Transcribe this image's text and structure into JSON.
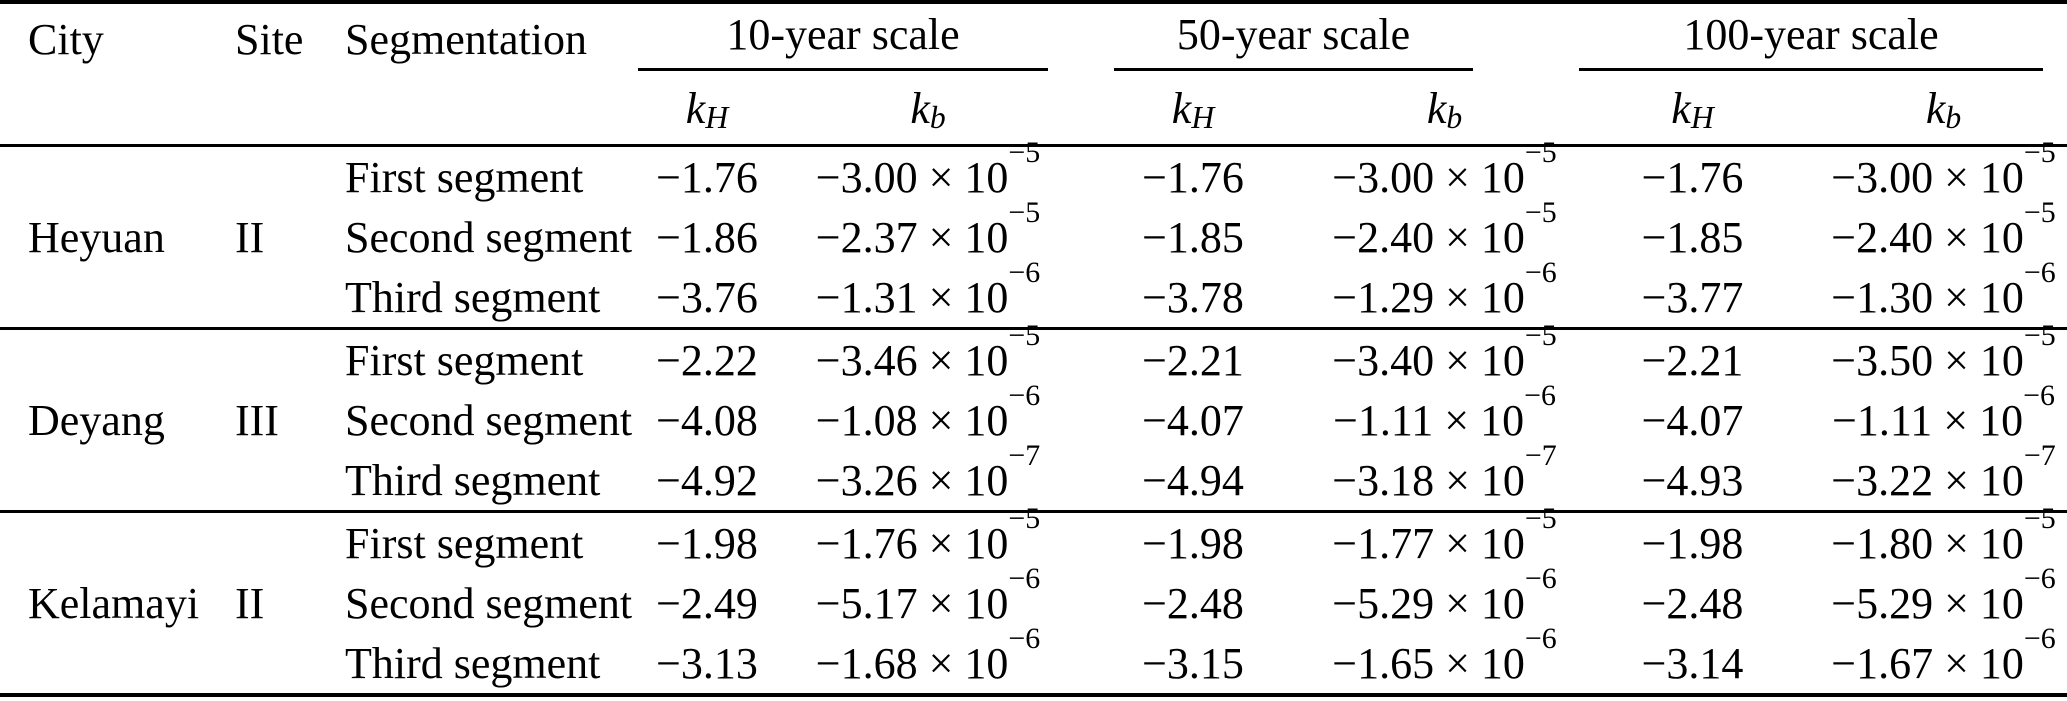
{
  "page": {
    "background_color": "#ffffff",
    "text_color": "#000000",
    "rule_color": "#000000"
  },
  "table": {
    "headers": {
      "city": "City",
      "site": "Site",
      "segmentation": "Segmentation"
    },
    "groups": [
      {
        "key": "10-year",
        "label": "10-year scale",
        "subcols": [
          {
            "key": "kH",
            "base": "k",
            "sub": "H"
          },
          {
            "key": "kb",
            "base": "k",
            "sub": "b"
          }
        ]
      },
      {
        "key": "50-year",
        "label": "50-year scale",
        "subcols": [
          {
            "key": "kH",
            "base": "k",
            "sub": "H"
          },
          {
            "key": "kb",
            "base": "k",
            "sub": "b"
          }
        ]
      },
      {
        "key": "100-year",
        "label": "100-year scale",
        "subcols": [
          {
            "key": "kH",
            "base": "k",
            "sub": "H"
          },
          {
            "key": "kb",
            "base": "k",
            "sub": "b"
          }
        ]
      }
    ],
    "blocks": [
      {
        "city": "Heyuan",
        "site": "II",
        "rows": [
          {
            "segment": "First segment",
            "scales": [
              {
                "kH": "−1.76",
                "kb": "−3.00 × 10^−5"
              },
              {
                "kH": "−1.76",
                "kb": "−3.00 × 10^−5"
              },
              {
                "kH": "−1.76",
                "kb": "−3.00 × 10^−5"
              }
            ]
          },
          {
            "segment": "Second segment",
            "scales": [
              {
                "kH": "−1.86",
                "kb": "−2.37 × 10^−5"
              },
              {
                "kH": "−1.85",
                "kb": "−2.40 × 10^−5"
              },
              {
                "kH": "−1.85",
                "kb": "−2.40 × 10^−5"
              }
            ]
          },
          {
            "segment": "Third segment",
            "scales": [
              {
                "kH": "−3.76",
                "kb": "−1.31 × 10^−6"
              },
              {
                "kH": "−3.78",
                "kb": "−1.29 × 10^−6"
              },
              {
                "kH": "−3.77",
                "kb": "−1.30 × 10^−6"
              }
            ]
          }
        ]
      },
      {
        "city": "Deyang",
        "site": "III",
        "rows": [
          {
            "segment": "First segment",
            "scales": [
              {
                "kH": "−2.22",
                "kb": "−3.46 × 10^−5"
              },
              {
                "kH": "−2.21",
                "kb": "−3.40 × 10^−5"
              },
              {
                "kH": "−2.21",
                "kb": "−3.50 × 10^−5"
              }
            ]
          },
          {
            "segment": "Second segment",
            "scales": [
              {
                "kH": "−4.08",
                "kb": "−1.08 × 10^−6"
              },
              {
                "kH": "−4.07",
                "kb": "−1.11 × 10^−6"
              },
              {
                "kH": "−4.07",
                "kb": "−1.11 × 10^−6"
              }
            ]
          },
          {
            "segment": "Third segment",
            "scales": [
              {
                "kH": "−4.92",
                "kb": "−3.26 × 10^−7"
              },
              {
                "kH": "−4.94",
                "kb": "−3.18 × 10^−7"
              },
              {
                "kH": "−4.93",
                "kb": "−3.22 × 10^−7"
              }
            ]
          }
        ]
      },
      {
        "city": "Kelamayi",
        "site": "II",
        "rows": [
          {
            "segment": "First segment",
            "scales": [
              {
                "kH": "−1.98",
                "kb": "−1.76 × 10^−5"
              },
              {
                "kH": "−1.98",
                "kb": "−1.77 × 10^−5"
              },
              {
                "kH": "−1.98",
                "kb": "−1.80 × 10^−5"
              }
            ]
          },
          {
            "segment": "Second segment",
            "scales": [
              {
                "kH": "−2.49",
                "kb": "−5.17 × 10^−6"
              },
              {
                "kH": "−2.48",
                "kb": "−5.29 × 10^−6"
              },
              {
                "kH": "−2.48",
                "kb": "−5.29 × 10^−6"
              }
            ]
          },
          {
            "segment": "Third segment",
            "scales": [
              {
                "kH": "−3.13",
                "kb": "−1.68 × 10^−6"
              },
              {
                "kH": "−3.15",
                "kb": "−1.65 × 10^−6"
              },
              {
                "kH": "−3.14",
                "kb": "−1.67 × 10^−6"
              }
            ]
          }
        ]
      }
    ]
  }
}
